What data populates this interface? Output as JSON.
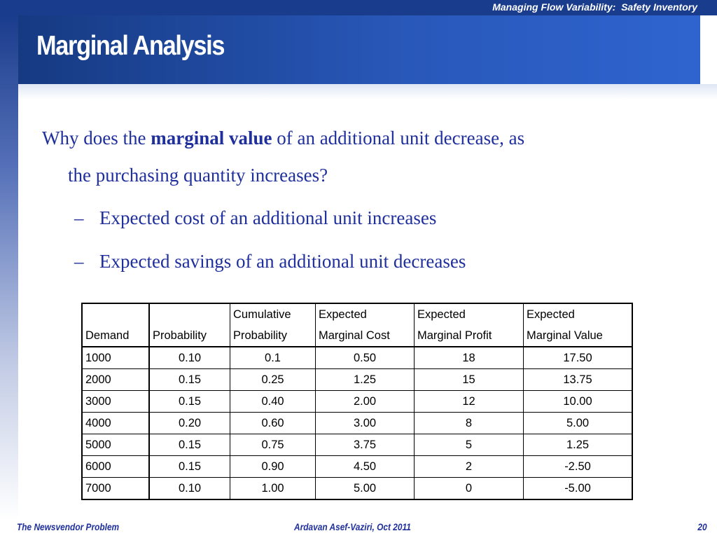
{
  "header": {
    "deck_title": "Managing Flow Variability:  Safety Inventory",
    "slide_title": "Marginal Analysis"
  },
  "body": {
    "question_before": "Why does the ",
    "question_bold": "marginal value",
    "question_after": " of an additional unit decrease, as",
    "question_line2": "the purchasing quantity increases?",
    "bullets": [
      "Expected cost of an additional unit increases",
      "Expected savings of an additional unit decreases"
    ]
  },
  "table": {
    "headers_top": [
      "",
      "",
      "Cumulative",
      "Expected",
      "Expected",
      "Expected"
    ],
    "headers_bottom": [
      "Demand",
      "Probability",
      "Probability",
      "Marginal Cost",
      "Marginal Profit",
      "Marginal Value"
    ],
    "rows": [
      [
        "1000",
        "0.10",
        "0.1",
        "0.50",
        "18",
        "17.50"
      ],
      [
        "2000",
        "0.15",
        "0.25",
        "1.25",
        "15",
        "13.75"
      ],
      [
        "3000",
        "0.15",
        "0.40",
        "2.00",
        "12",
        "10.00"
      ],
      [
        "4000",
        "0.20",
        "0.60",
        "3.00",
        "8",
        "5.00"
      ],
      [
        "5000",
        "0.15",
        "0.75",
        "3.75",
        "5",
        "1.25"
      ],
      [
        "6000",
        "0.15",
        "0.90",
        "4.50",
        "2",
        "-2.50"
      ],
      [
        "7000",
        "0.10",
        "1.00",
        "5.00",
        "0",
        "-5.00"
      ]
    ]
  },
  "footer": {
    "left": "The Newsvendor Problem",
    "center": "Ardavan Asef-Vaziri, Oct 2011",
    "page_number": "20"
  }
}
